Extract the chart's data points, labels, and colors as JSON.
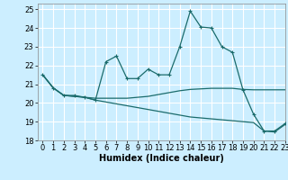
{
  "title": "",
  "xlabel": "Humidex (Indice chaleur)",
  "background_color": "#cceeff",
  "grid_color": "#ffffff",
  "line_color": "#1a6b6b",
  "xlim": [
    -0.5,
    23
  ],
  "ylim": [
    18,
    25.3
  ],
  "yticks": [
    18,
    19,
    20,
    21,
    22,
    23,
    24,
    25
  ],
  "xticks": [
    0,
    1,
    2,
    3,
    4,
    5,
    6,
    7,
    8,
    9,
    10,
    11,
    12,
    13,
    14,
    15,
    16,
    17,
    18,
    19,
    20,
    21,
    22,
    23
  ],
  "line1_x": [
    0,
    1,
    2,
    3,
    4,
    5,
    6,
    7,
    8,
    9,
    10,
    11,
    12,
    13,
    14,
    15,
    16,
    17,
    18,
    19,
    20,
    21,
    22,
    23
  ],
  "line1_y": [
    21.5,
    20.8,
    20.4,
    20.4,
    20.3,
    20.15,
    22.2,
    22.5,
    21.3,
    21.3,
    21.8,
    21.5,
    21.5,
    23.0,
    24.9,
    24.05,
    24.0,
    23.0,
    22.7,
    20.7,
    19.4,
    18.5,
    18.5,
    18.9
  ],
  "line2_x": [
    0,
    1,
    2,
    3,
    4,
    5,
    6,
    7,
    8,
    9,
    10,
    11,
    12,
    13,
    14,
    15,
    16,
    17,
    18,
    19,
    20,
    21,
    22,
    23
  ],
  "line2_y": [
    21.5,
    20.8,
    20.4,
    20.35,
    20.3,
    20.25,
    20.25,
    20.25,
    20.25,
    20.3,
    20.35,
    20.45,
    20.55,
    20.65,
    20.72,
    20.75,
    20.78,
    20.78,
    20.78,
    20.72,
    20.7,
    20.7,
    20.7,
    20.7
  ],
  "line3_x": [
    0,
    1,
    2,
    3,
    4,
    5,
    6,
    7,
    8,
    9,
    10,
    11,
    12,
    13,
    14,
    15,
    16,
    17,
    18,
    19,
    20,
    21,
    22,
    23
  ],
  "line3_y": [
    21.5,
    20.8,
    20.4,
    20.35,
    20.3,
    20.15,
    20.05,
    19.95,
    19.85,
    19.75,
    19.65,
    19.55,
    19.45,
    19.35,
    19.25,
    19.2,
    19.15,
    19.1,
    19.05,
    19.0,
    18.95,
    18.5,
    18.45,
    18.85
  ],
  "tick_fontsize": 6,
  "xlabel_fontsize": 7
}
